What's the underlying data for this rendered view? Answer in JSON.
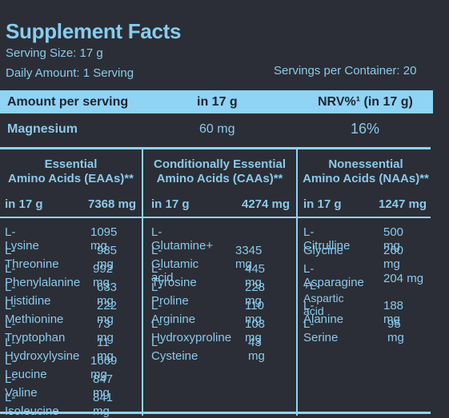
{
  "title": "Supplement Facts",
  "serving_size": "Serving Size: 17 g",
  "daily_amount": "Daily Amount: 1 Serving",
  "servings_per_container": "Servings per Container: 20",
  "header": {
    "amount": "Amount per serving",
    "in17": "in 17 g",
    "nrv": "NRV%¹ (in 17 g)"
  },
  "magnesium": {
    "name": "Magnesium",
    "amount": "60 mg",
    "nrv": "16%"
  },
  "columns": [
    {
      "title1": "Essential",
      "title2": "Amino Acids (EAAs)**",
      "sub_label": "in 17 g",
      "sub_value": "7368 mg",
      "items": [
        {
          "name": "L-Lysine",
          "value": "1095 mg"
        },
        {
          "name": "L-Threonine",
          "value": "985 mg"
        },
        {
          "name": "L-Phenylalanine",
          "value": "992 mg"
        },
        {
          "name": "L-Histidine",
          "value": "633 mg"
        },
        {
          "name": "L-Methionine",
          "value": "222 mg"
        },
        {
          "name": "L-Tryptophan",
          "value": "73 mg"
        },
        {
          "name": "L-Hydroxylysine",
          "value": "11 mg"
        },
        {
          "name": "L-Leucine",
          "value": "1669 mg"
        },
        {
          "name": "L-Valine",
          "value": "847 mg"
        },
        {
          "name": "L-Isoleucine",
          "value": "841 mg"
        }
      ]
    },
    {
      "title1": "Conditionally Essential",
      "title2": "Amino Acids (CAAs)**",
      "sub_label": "in 17 g",
      "sub_value": "4274 mg",
      "items": [
        {
          "name": "L-Glutamine+",
          "value": ""
        },
        {
          "name": "L-Glutamic acid",
          "value": "3345 mg"
        },
        {
          "name": "L-Tyrosine",
          "value": "445 mg"
        },
        {
          "name": "L-Proline",
          "value": "228 mg"
        },
        {
          "name": "L-Arginine",
          "value": "110 mg"
        },
        {
          "name": "L-Hydroxyproline",
          "value": "103 mg"
        },
        {
          "name": "L-Cysteine",
          "value": "43 mg"
        }
      ]
    },
    {
      "title1": "Nonessential",
      "title2": "Amino Acids (NAAs)**",
      "sub_label": "in 17 g",
      "sub_value": "1247 mg",
      "items": [
        {
          "name": "L-Citrulline",
          "value": "500 mg"
        },
        {
          "name": "Glycine",
          "value": "260 mg"
        },
        {
          "name": "L-Asparagine",
          "value": ""
        },
        {
          "name": "+L-Aspartic acid",
          "value": "204 mg"
        },
        {
          "name": "L-Alanine",
          "value": "188 mg"
        },
        {
          "name": "L-Serine",
          "value": "95 mg"
        }
      ]
    }
  ]
}
